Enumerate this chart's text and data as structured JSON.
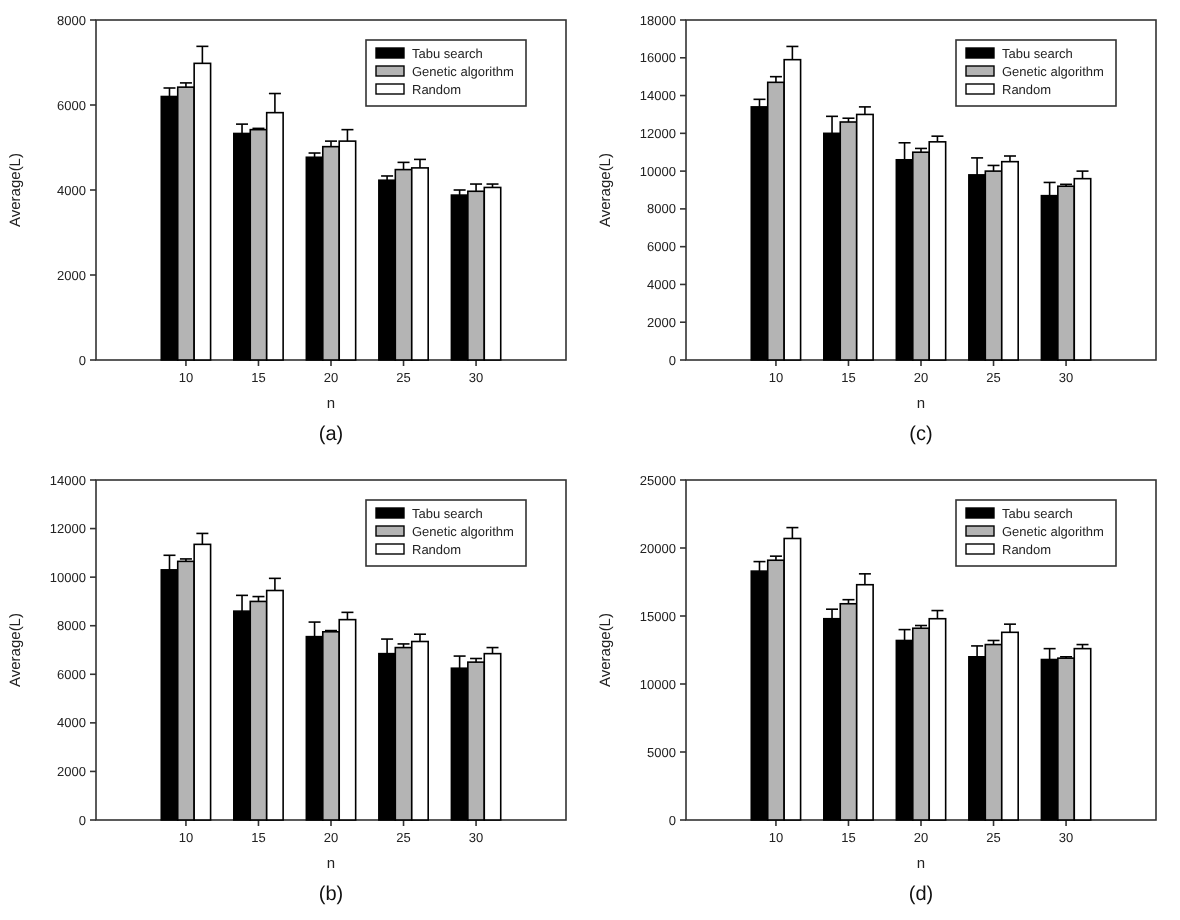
{
  "chart_data": [
    {
      "type": "bar",
      "xlabel": "n",
      "ylabel": "Average(L)",
      "annotations": [
        "(a)"
      ],
      "legend": "top right",
      "categories": [
        "10",
        "15",
        "20",
        "25",
        "30"
      ],
      "ylim": [
        0,
        8000
      ],
      "yticks": [
        0,
        2000,
        4000,
        6000,
        8000
      ],
      "series": [
        {
          "name": "Tabu search",
          "color": "#000000",
          "values": [
            6200,
            5330,
            4770,
            4230,
            3880
          ],
          "errors": [
            [
              6200,
              6400
            ],
            [
              5330,
              5550
            ],
            [
              4770,
              4870
            ],
            [
              4230,
              4330
            ],
            [
              3880,
              4000
            ]
          ]
        },
        {
          "name": "Genetic algorithm",
          "color": "#b4b4b4",
          "values": [
            6420,
            5420,
            5020,
            4480,
            3970
          ],
          "errors": [
            [
              6420,
              6520
            ],
            [
              5420,
              5450
            ],
            [
              5020,
              5150
            ],
            [
              4480,
              4650
            ],
            [
              3970,
              4140
            ]
          ]
        },
        {
          "name": "Random",
          "color": "#ffffff",
          "values": [
            6980,
            5820,
            5150,
            4520,
            4060
          ],
          "errors": [
            [
              6980,
              7380
            ],
            [
              5820,
              6270
            ],
            [
              5150,
              5420
            ],
            [
              4520,
              4720
            ],
            [
              4060,
              4140
            ]
          ]
        }
      ]
    },
    {
      "type": "bar",
      "xlabel": "n",
      "ylabel": "Average(L)",
      "annotations": [
        "(c)"
      ],
      "legend": "top right",
      "categories": [
        "10",
        "15",
        "20",
        "25",
        "30"
      ],
      "ylim": [
        0,
        18000
      ],
      "yticks": [
        0,
        2000,
        4000,
        6000,
        8000,
        10000,
        12000,
        14000,
        16000,
        18000
      ],
      "series": [
        {
          "name": "Tabu search",
          "color": "#000000",
          "values": [
            13400,
            12000,
            10600,
            9800,
            8700
          ],
          "errors": [
            [
              13400,
              13800
            ],
            [
              12000,
              12900
            ],
            [
              10600,
              11500
            ],
            [
              9800,
              10700
            ],
            [
              8700,
              9400
            ]
          ]
        },
        {
          "name": "Genetic algorithm",
          "color": "#b4b4b4",
          "values": [
            14700,
            12600,
            11000,
            10000,
            9200
          ],
          "errors": [
            [
              14700,
              15000
            ],
            [
              12600,
              12800
            ],
            [
              11000,
              11200
            ],
            [
              10000,
              10300
            ],
            [
              9200,
              9300
            ]
          ]
        },
        {
          "name": "Random",
          "color": "#ffffff",
          "values": [
            15900,
            13000,
            11550,
            10500,
            9600
          ],
          "errors": [
            [
              15900,
              16600
            ],
            [
              13000,
              13400
            ],
            [
              11550,
              11850
            ],
            [
              10500,
              10800
            ],
            [
              9600,
              10000
            ]
          ]
        }
      ]
    },
    {
      "type": "bar",
      "xlabel": "n",
      "ylabel": "Average(L)",
      "annotations": [
        "(b)"
      ],
      "legend": "top right",
      "categories": [
        "10",
        "15",
        "20",
        "25",
        "30"
      ],
      "ylim": [
        0,
        14000
      ],
      "yticks": [
        0,
        2000,
        4000,
        6000,
        8000,
        10000,
        12000,
        14000
      ],
      "series": [
        {
          "name": "Tabu search",
          "color": "#000000",
          "values": [
            10300,
            8600,
            7550,
            6850,
            6250
          ],
          "errors": [
            [
              10300,
              10900
            ],
            [
              8600,
              9250
            ],
            [
              7550,
              8150
            ],
            [
              6850,
              7450
            ],
            [
              6250,
              6750
            ]
          ]
        },
        {
          "name": "Genetic algorithm",
          "color": "#b4b4b4",
          "values": [
            10650,
            9000,
            7750,
            7100,
            6500
          ],
          "errors": [
            [
              10650,
              10750
            ],
            [
              9000,
              9200
            ],
            [
              7750,
              7800
            ],
            [
              7100,
              7250
            ],
            [
              6500,
              6650
            ]
          ]
        },
        {
          "name": "Random",
          "color": "#ffffff",
          "values": [
            11350,
            9450,
            8250,
            7350,
            6850
          ],
          "errors": [
            [
              11350,
              11800
            ],
            [
              9450,
              9950
            ],
            [
              8250,
              8550
            ],
            [
              7350,
              7650
            ],
            [
              6850,
              7100
            ]
          ]
        }
      ]
    },
    {
      "type": "bar",
      "xlabel": "n",
      "ylabel": "Average(L)",
      "annotations": [
        "(d)"
      ],
      "legend": "top right",
      "categories": [
        "10",
        "15",
        "20",
        "25",
        "30"
      ],
      "ylim": [
        0,
        25000
      ],
      "yticks": [
        0,
        5000,
        10000,
        15000,
        20000,
        25000
      ],
      "series": [
        {
          "name": "Tabu search",
          "color": "#000000",
          "values": [
            18300,
            14800,
            13200,
            12000,
            11800
          ],
          "errors": [
            [
              18300,
              19000
            ],
            [
              14800,
              15500
            ],
            [
              13200,
              14000
            ],
            [
              12000,
              12800
            ],
            [
              11800,
              12600
            ]
          ]
        },
        {
          "name": "Genetic algorithm",
          "color": "#b4b4b4",
          "values": [
            19100,
            15900,
            14100,
            12900,
            11900
          ],
          "errors": [
            [
              19100,
              19400
            ],
            [
              15900,
              16200
            ],
            [
              14100,
              14300
            ],
            [
              12900,
              13200
            ],
            [
              11900,
              12000
            ]
          ]
        },
        {
          "name": "Random",
          "color": "#ffffff",
          "values": [
            20700,
            17300,
            14800,
            13800,
            12600
          ],
          "errors": [
            [
              20700,
              21500
            ],
            [
              17300,
              18100
            ],
            [
              14800,
              15400
            ],
            [
              13800,
              14400
            ],
            [
              12600,
              12900
            ]
          ]
        }
      ]
    }
  ]
}
